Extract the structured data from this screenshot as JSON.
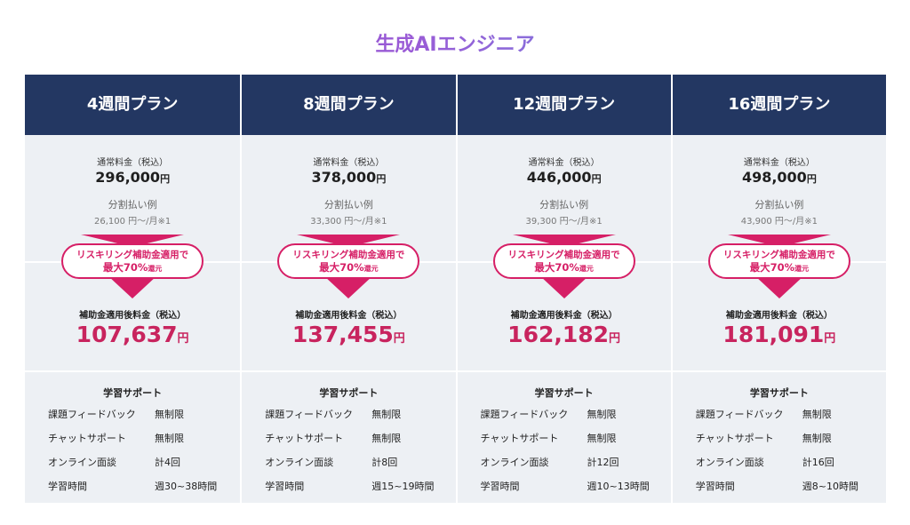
{
  "title": "生成AIエンジニア",
  "plans": [
    {
      "name": "4週間プラン",
      "regular_label": "通常料金（税込）",
      "regular_price": "296,000",
      "currency": "円",
      "installment_label": "分割払い例",
      "installment_value": "26,100 円〜/月※1",
      "badge_line1": "リスキリング補助金適用で",
      "badge_line2_main": "最大70%",
      "badge_line2_suffix": "還元",
      "after_label": "補助金適用後料金（税込）",
      "after_price": "107,637",
      "support_title": "学習サポート",
      "support": [
        {
          "label": "課題フィードバック",
          "value": "無制限"
        },
        {
          "label": "チャットサポート",
          "value": "無制限"
        },
        {
          "label": "オンライン面談",
          "value": "計4回"
        },
        {
          "label": "学習時間",
          "value": "週30~38時間"
        }
      ]
    },
    {
      "name": "8週間プラン",
      "regular_label": "通常料金（税込）",
      "regular_price": "378,000",
      "currency": "円",
      "installment_label": "分割払い例",
      "installment_value": "33,300 円〜/月※1",
      "badge_line1": "リスキリング補助金適用で",
      "badge_line2_main": "最大70%",
      "badge_line2_suffix": "還元",
      "after_label": "補助金適用後料金（税込）",
      "after_price": "137,455",
      "support_title": "学習サポート",
      "support": [
        {
          "label": "課題フィードバック",
          "value": "無制限"
        },
        {
          "label": "チャットサポート",
          "value": "無制限"
        },
        {
          "label": "オンライン面談",
          "value": "計8回"
        },
        {
          "label": "学習時間",
          "value": "週15~19時間"
        }
      ]
    },
    {
      "name": "12週間プラン",
      "regular_label": "通常料金（税込）",
      "regular_price": "446,000",
      "currency": "円",
      "installment_label": "分割払い例",
      "installment_value": "39,300 円〜/月※1",
      "badge_line1": "リスキリング補助金適用で",
      "badge_line2_main": "最大70%",
      "badge_line2_suffix": "還元",
      "after_label": "補助金適用後料金（税込）",
      "after_price": "162,182",
      "support_title": "学習サポート",
      "support": [
        {
          "label": "課題フィードバック",
          "value": "無制限"
        },
        {
          "label": "チャットサポート",
          "value": "無制限"
        },
        {
          "label": "オンライン面談",
          "value": "計12回"
        },
        {
          "label": "学習時間",
          "value": "週10~13時間"
        }
      ]
    },
    {
      "name": "16週間プラン",
      "regular_label": "通常料金（税込）",
      "regular_price": "498,000",
      "currency": "円",
      "installment_label": "分割払い例",
      "installment_value": "43,900 円〜/月※1",
      "badge_line1": "リスキリング補助金適用で",
      "badge_line2_main": "最大70%",
      "badge_line2_suffix": "還元",
      "after_label": "補助金適用後料金（税込）",
      "after_price": "181,091",
      "support_title": "学習サポート",
      "support": [
        {
          "label": "課題フィードバック",
          "value": "無制限"
        },
        {
          "label": "チャットサポート",
          "value": "無制限"
        },
        {
          "label": "オンライン面談",
          "value": "計16回"
        },
        {
          "label": "学習時間",
          "value": "週8~10時間"
        }
      ]
    }
  ],
  "colors": {
    "header_bg": "#233762",
    "accent": "#d61f66",
    "price_accent": "#c8245e",
    "panel_bg": "#edf0f4"
  }
}
